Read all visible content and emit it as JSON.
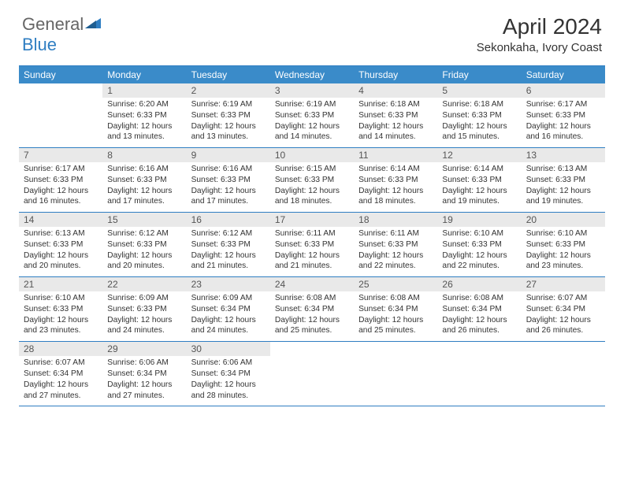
{
  "logo": {
    "text1": "General",
    "text2": "Blue"
  },
  "title": {
    "month": "April 2024",
    "location": "Sekonkaha, Ivory Coast"
  },
  "colors": {
    "accent": "#3a8bc9",
    "rule": "#2f7ec2",
    "daynum_bg": "#e9e9e9",
    "text": "#333333",
    "logo_gray": "#666666"
  },
  "dow": [
    "Sunday",
    "Monday",
    "Tuesday",
    "Wednesday",
    "Thursday",
    "Friday",
    "Saturday"
  ],
  "weeks": [
    [
      {
        "n": "",
        "blank": true,
        "lines": [
          "",
          "",
          "",
          ""
        ]
      },
      {
        "n": "1",
        "lines": [
          "Sunrise: 6:20 AM",
          "Sunset: 6:33 PM",
          "Daylight: 12 hours",
          "and 13 minutes."
        ]
      },
      {
        "n": "2",
        "lines": [
          "Sunrise: 6:19 AM",
          "Sunset: 6:33 PM",
          "Daylight: 12 hours",
          "and 13 minutes."
        ]
      },
      {
        "n": "3",
        "lines": [
          "Sunrise: 6:19 AM",
          "Sunset: 6:33 PM",
          "Daylight: 12 hours",
          "and 14 minutes."
        ]
      },
      {
        "n": "4",
        "lines": [
          "Sunrise: 6:18 AM",
          "Sunset: 6:33 PM",
          "Daylight: 12 hours",
          "and 14 minutes."
        ]
      },
      {
        "n": "5",
        "lines": [
          "Sunrise: 6:18 AM",
          "Sunset: 6:33 PM",
          "Daylight: 12 hours",
          "and 15 minutes."
        ]
      },
      {
        "n": "6",
        "lines": [
          "Sunrise: 6:17 AM",
          "Sunset: 6:33 PM",
          "Daylight: 12 hours",
          "and 16 minutes."
        ]
      }
    ],
    [
      {
        "n": "7",
        "lines": [
          "Sunrise: 6:17 AM",
          "Sunset: 6:33 PM",
          "Daylight: 12 hours",
          "and 16 minutes."
        ]
      },
      {
        "n": "8",
        "lines": [
          "Sunrise: 6:16 AM",
          "Sunset: 6:33 PM",
          "Daylight: 12 hours",
          "and 17 minutes."
        ]
      },
      {
        "n": "9",
        "lines": [
          "Sunrise: 6:16 AM",
          "Sunset: 6:33 PM",
          "Daylight: 12 hours",
          "and 17 minutes."
        ]
      },
      {
        "n": "10",
        "lines": [
          "Sunrise: 6:15 AM",
          "Sunset: 6:33 PM",
          "Daylight: 12 hours",
          "and 18 minutes."
        ]
      },
      {
        "n": "11",
        "lines": [
          "Sunrise: 6:14 AM",
          "Sunset: 6:33 PM",
          "Daylight: 12 hours",
          "and 18 minutes."
        ]
      },
      {
        "n": "12",
        "lines": [
          "Sunrise: 6:14 AM",
          "Sunset: 6:33 PM",
          "Daylight: 12 hours",
          "and 19 minutes."
        ]
      },
      {
        "n": "13",
        "lines": [
          "Sunrise: 6:13 AM",
          "Sunset: 6:33 PM",
          "Daylight: 12 hours",
          "and 19 minutes."
        ]
      }
    ],
    [
      {
        "n": "14",
        "lines": [
          "Sunrise: 6:13 AM",
          "Sunset: 6:33 PM",
          "Daylight: 12 hours",
          "and 20 minutes."
        ]
      },
      {
        "n": "15",
        "lines": [
          "Sunrise: 6:12 AM",
          "Sunset: 6:33 PM",
          "Daylight: 12 hours",
          "and 20 minutes."
        ]
      },
      {
        "n": "16",
        "lines": [
          "Sunrise: 6:12 AM",
          "Sunset: 6:33 PM",
          "Daylight: 12 hours",
          "and 21 minutes."
        ]
      },
      {
        "n": "17",
        "lines": [
          "Sunrise: 6:11 AM",
          "Sunset: 6:33 PM",
          "Daylight: 12 hours",
          "and 21 minutes."
        ]
      },
      {
        "n": "18",
        "lines": [
          "Sunrise: 6:11 AM",
          "Sunset: 6:33 PM",
          "Daylight: 12 hours",
          "and 22 minutes."
        ]
      },
      {
        "n": "19",
        "lines": [
          "Sunrise: 6:10 AM",
          "Sunset: 6:33 PM",
          "Daylight: 12 hours",
          "and 22 minutes."
        ]
      },
      {
        "n": "20",
        "lines": [
          "Sunrise: 6:10 AM",
          "Sunset: 6:33 PM",
          "Daylight: 12 hours",
          "and 23 minutes."
        ]
      }
    ],
    [
      {
        "n": "21",
        "lines": [
          "Sunrise: 6:10 AM",
          "Sunset: 6:33 PM",
          "Daylight: 12 hours",
          "and 23 minutes."
        ]
      },
      {
        "n": "22",
        "lines": [
          "Sunrise: 6:09 AM",
          "Sunset: 6:33 PM",
          "Daylight: 12 hours",
          "and 24 minutes."
        ]
      },
      {
        "n": "23",
        "lines": [
          "Sunrise: 6:09 AM",
          "Sunset: 6:34 PM",
          "Daylight: 12 hours",
          "and 24 minutes."
        ]
      },
      {
        "n": "24",
        "lines": [
          "Sunrise: 6:08 AM",
          "Sunset: 6:34 PM",
          "Daylight: 12 hours",
          "and 25 minutes."
        ]
      },
      {
        "n": "25",
        "lines": [
          "Sunrise: 6:08 AM",
          "Sunset: 6:34 PM",
          "Daylight: 12 hours",
          "and 25 minutes."
        ]
      },
      {
        "n": "26",
        "lines": [
          "Sunrise: 6:08 AM",
          "Sunset: 6:34 PM",
          "Daylight: 12 hours",
          "and 26 minutes."
        ]
      },
      {
        "n": "27",
        "lines": [
          "Sunrise: 6:07 AM",
          "Sunset: 6:34 PM",
          "Daylight: 12 hours",
          "and 26 minutes."
        ]
      }
    ],
    [
      {
        "n": "28",
        "lines": [
          "Sunrise: 6:07 AM",
          "Sunset: 6:34 PM",
          "Daylight: 12 hours",
          "and 27 minutes."
        ]
      },
      {
        "n": "29",
        "lines": [
          "Sunrise: 6:06 AM",
          "Sunset: 6:34 PM",
          "Daylight: 12 hours",
          "and 27 minutes."
        ]
      },
      {
        "n": "30",
        "lines": [
          "Sunrise: 6:06 AM",
          "Sunset: 6:34 PM",
          "Daylight: 12 hours",
          "and 28 minutes."
        ]
      },
      {
        "n": "",
        "blank": true,
        "lines": [
          "",
          "",
          "",
          ""
        ]
      },
      {
        "n": "",
        "blank": true,
        "lines": [
          "",
          "",
          "",
          ""
        ]
      },
      {
        "n": "",
        "blank": true,
        "lines": [
          "",
          "",
          "",
          ""
        ]
      },
      {
        "n": "",
        "blank": true,
        "lines": [
          "",
          "",
          "",
          ""
        ]
      }
    ]
  ]
}
